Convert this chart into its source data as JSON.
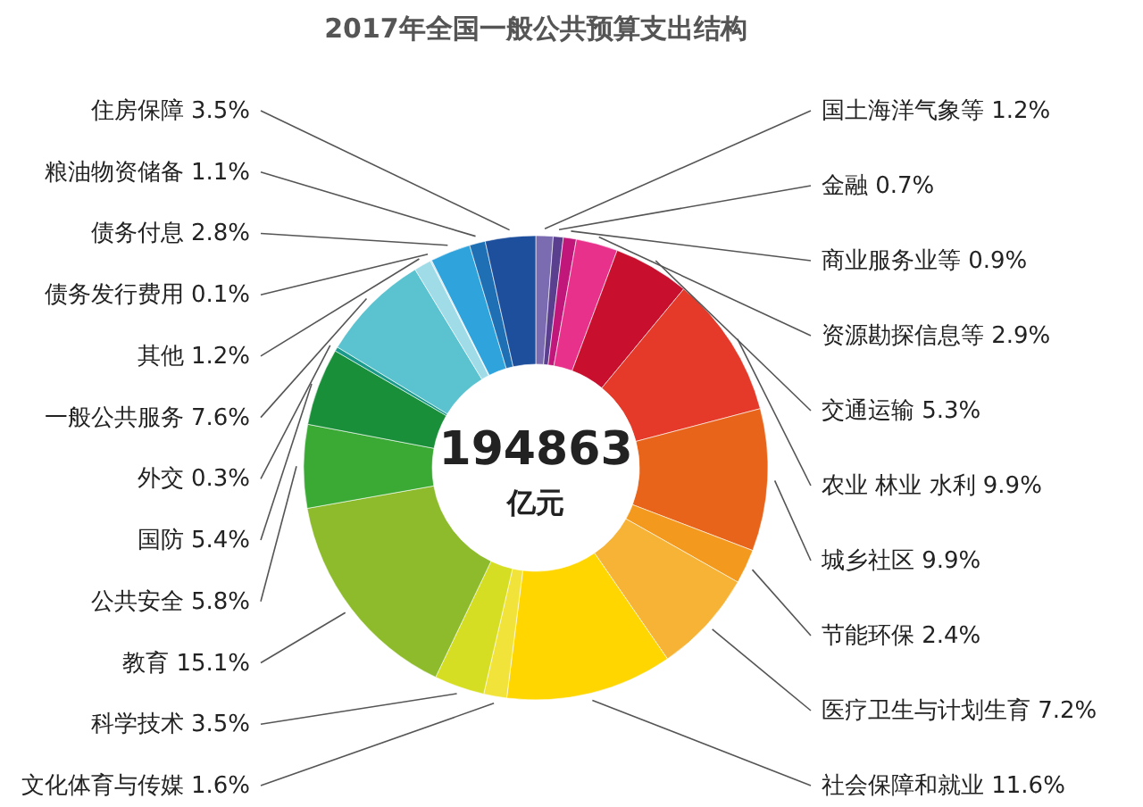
{
  "chart_data": {
    "type": "donut",
    "title": "2017年全国一般公共预算支出结构",
    "categories": [
      "国土海洋气象等",
      "金融",
      "商业服务业等",
      "资源勘探信息等",
      "交通运输",
      "农业 林业 水利",
      "城乡社区",
      "节能环保",
      "医疗卫生与计划生育",
      "社会保障和就业",
      "文化体育与传媒",
      "科学技术",
      "教育",
      "公共安全",
      "国防",
      "外交",
      "一般公共服务",
      "其他",
      "债务发行费用",
      "债务付息",
      "粮油物资储备",
      "住房保障"
    ],
    "values": [
      1.2,
      0.7,
      0.9,
      2.9,
      5.3,
      9.9,
      9.9,
      2.4,
      7.2,
      11.6,
      1.6,
      3.5,
      15.1,
      5.8,
      5.4,
      0.3,
      7.6,
      1.2,
      0.1,
      2.8,
      1.1,
      3.5
    ],
    "value_labels": [
      "1.2%",
      "0.7%",
      "0.9%",
      "2.9%",
      "5.3%",
      "9.9%",
      "9.9%",
      "2.4%",
      "7.2%",
      "11.6%",
      "1.6%",
      "3.5%",
      "15.1%",
      "5.8%",
      "5.4%",
      "0.3%",
      "7.6%",
      "1.2%",
      "0.1%",
      "2.8%",
      "1.1%",
      "3.5%"
    ],
    "colors": [
      "#7b6bb0",
      "#5a3f8f",
      "#c2177a",
      "#e8318a",
      "#c8102e",
      "#e53a2a",
      "#e8641b",
      "#f39a1e",
      "#f6b335",
      "#ffd600",
      "#f2e33a",
      "#d6de23",
      "#8dbb2c",
      "#3aaa35",
      "#1a8f3a",
      "#1a9a8a",
      "#5bc2d0",
      "#9fdce8",
      "#c8e6f0",
      "#2ea3dc",
      "#1f6fb5",
      "#1e4f9c"
    ],
    "annotations": [
      "194863",
      "亿元"
    ]
  }
}
